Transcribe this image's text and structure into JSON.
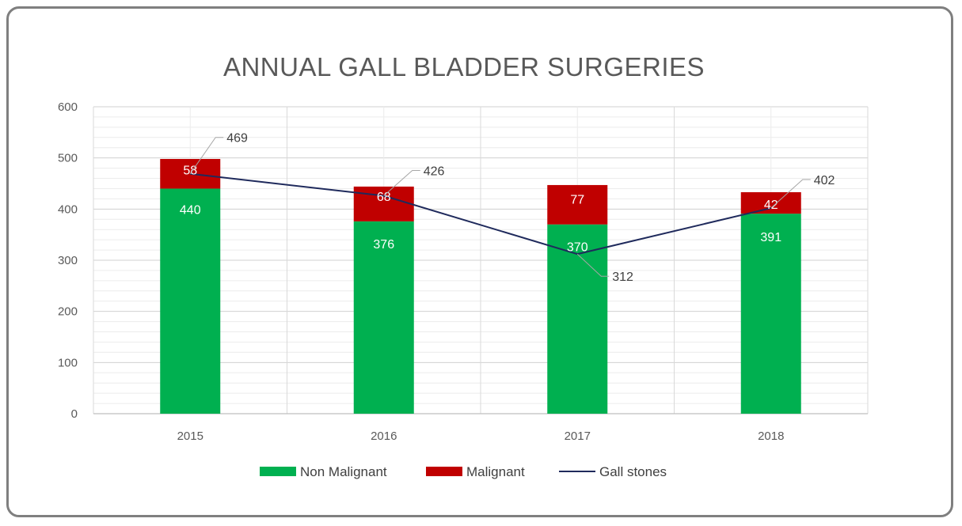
{
  "chart_data": {
    "type": "bar",
    "stacked": true,
    "title": "ANNUAL GALL BLADDER SURGERIES",
    "categories": [
      "2015",
      "2016",
      "2017",
      "2018"
    ],
    "ylim": [
      0,
      600
    ],
    "yticks": [
      "0",
      "100",
      "200",
      "300",
      "400",
      "500",
      "600"
    ],
    "grid": true,
    "legend_position": "bottom",
    "series": [
      {
        "name": "Non Malignant",
        "type": "bar",
        "color": "#00b050",
        "values": [
          440,
          376,
          370,
          391
        ]
      },
      {
        "name": "Malignant",
        "type": "bar",
        "color": "#c00000",
        "values": [
          58,
          68,
          77,
          42
        ]
      },
      {
        "name": "Gall stones",
        "type": "line",
        "color": "#1f2a5c",
        "values": [
          469,
          426,
          312,
          402
        ]
      }
    ]
  }
}
